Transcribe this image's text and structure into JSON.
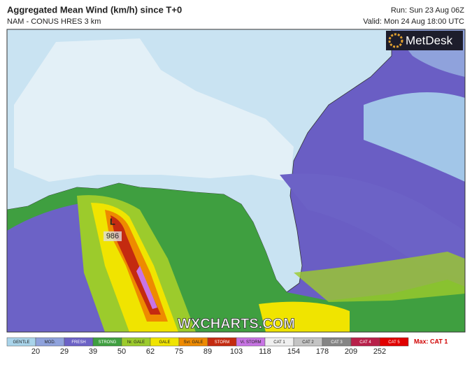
{
  "header": {
    "title": "Aggregated Mean Wind (km/h) since T+0",
    "subtitle": "NAM - CONUS HRES 3 km",
    "run": "Run: Sun 23 Aug 06Z",
    "valid": "Valid: Mon 24 Aug 18:00 UTC"
  },
  "logo": "MetDesk",
  "watermark": "WXCHARTS.COM",
  "storm": {
    "symbol": "L",
    "pressure": "986"
  },
  "legend": {
    "categories": [
      {
        "label": "GENTLE",
        "color": "#a9d4ea"
      },
      {
        "label": "MOD.",
        "color": "#8fa2dc"
      },
      {
        "label": "FRESH",
        "color": "#6c62c6"
      },
      {
        "label": "STRONG",
        "color": "#3f9f40"
      },
      {
        "label": "Nr. GALE",
        "color": "#9ccb2c"
      },
      {
        "label": "GALE",
        "color": "#f0e400"
      },
      {
        "label": "Svr. GALE",
        "color": "#ee8a00"
      },
      {
        "label": "STORM",
        "color": "#c42a10"
      },
      {
        "label": "Vi. STORM",
        "color": "#c874e4"
      },
      {
        "label": "CAT 1",
        "color": "#efefef"
      },
      {
        "label": "CAT 2",
        "color": "#c4c4c4"
      },
      {
        "label": "CAT 3",
        "color": "#858585"
      },
      {
        "label": "CAT 4",
        "color": "#b8204a"
      },
      {
        "label": "CAT 5",
        "color": "#e00000"
      }
    ],
    "thresholds": [
      "20",
      "29",
      "39",
      "50",
      "62",
      "75",
      "89",
      "103",
      "118",
      "154",
      "178",
      "209",
      "252"
    ],
    "max": "Max: CAT 1"
  }
}
